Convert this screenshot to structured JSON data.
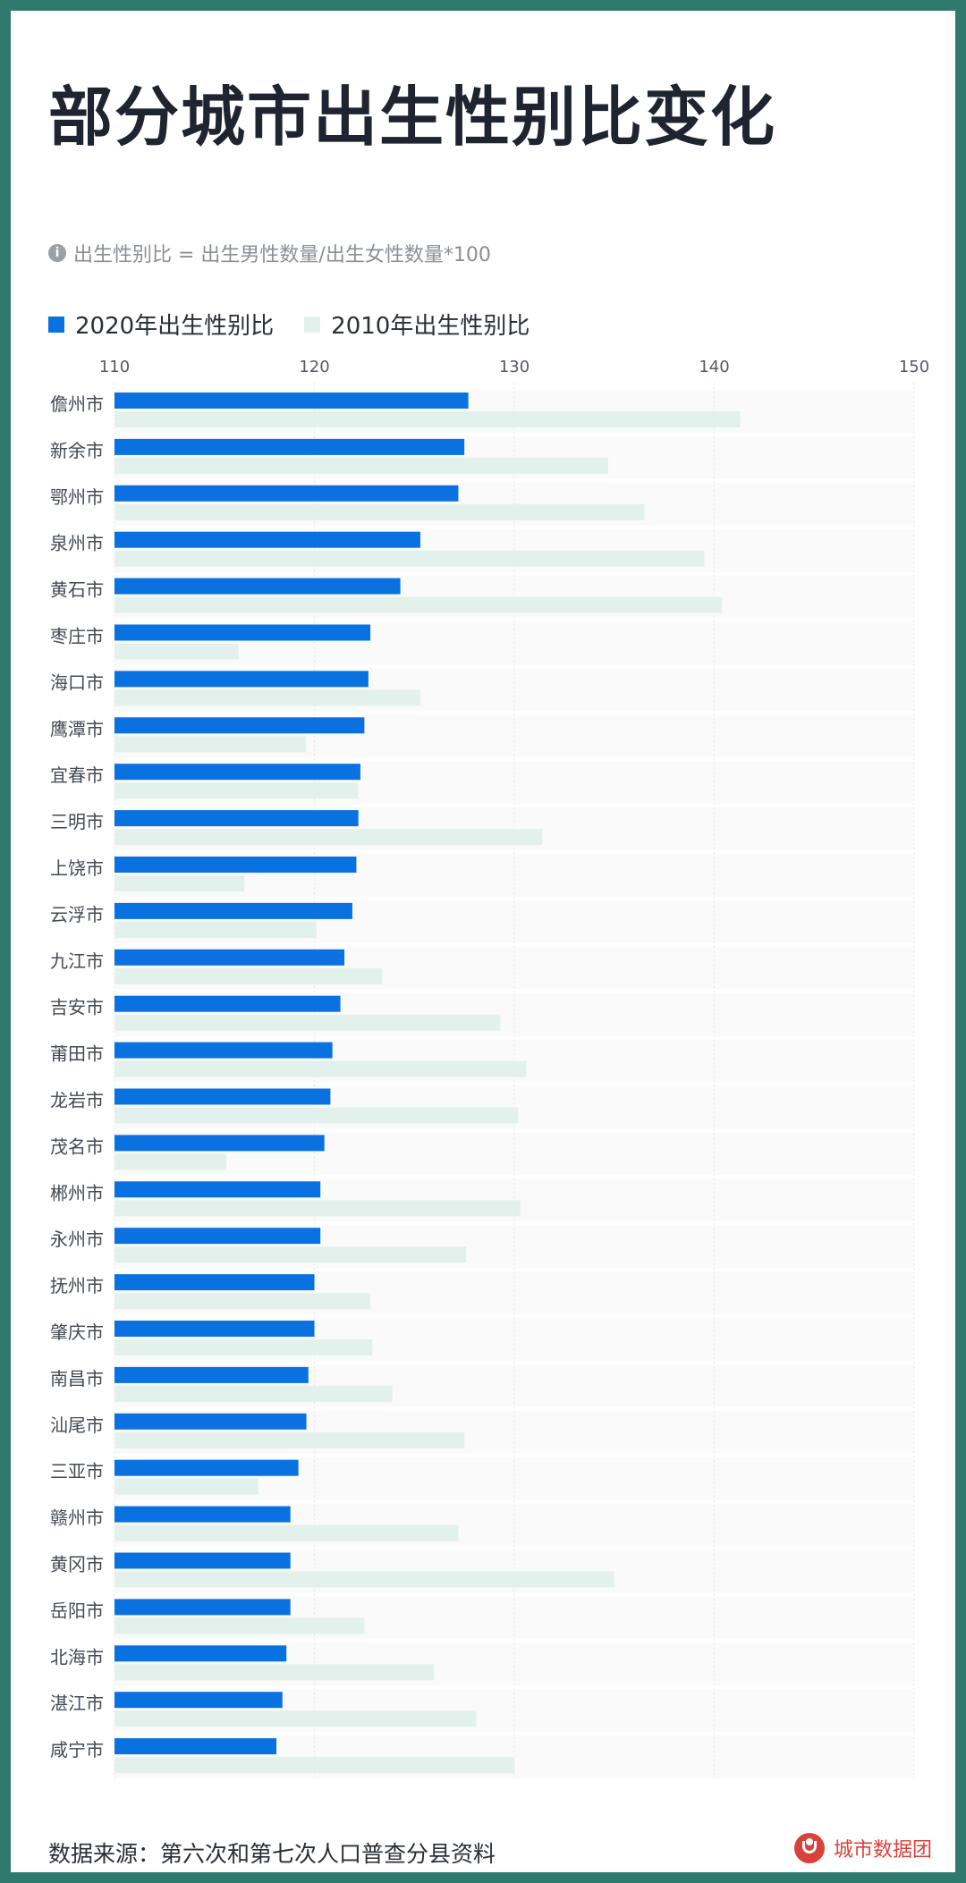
{
  "title": "部分城市出生性别比变化",
  "note": "出生性别比 = 出生男性数量/出生女性数量*100",
  "legend": {
    "series2020": "2020年出生性别比",
    "series2010": "2010年出生性别比"
  },
  "colors": {
    "series2020": "#0a72e0",
    "series2010": "#e3f1ec",
    "frame": "#2f7a6d",
    "brand": "#d9423a"
  },
  "footer": {
    "source": "数据来源：第六次和第七次人口普查分县资料",
    "brand": "城市数据团"
  },
  "chart_data": {
    "type": "bar",
    "orientation": "horizontal",
    "title": "部分城市出生性别比变化",
    "xlim": [
      110,
      150
    ],
    "xticks": [
      110,
      120,
      130,
      140,
      150
    ],
    "categories": [
      "儋州市",
      "新余市",
      "鄂州市",
      "泉州市",
      "黄石市",
      "枣庄市",
      "海口市",
      "鹰潭市",
      "宜春市",
      "三明市",
      "上饶市",
      "云浮市",
      "九江市",
      "吉安市",
      "莆田市",
      "龙岩市",
      "茂名市",
      "郴州市",
      "永州市",
      "抚州市",
      "肇庆市",
      "南昌市",
      "汕尾市",
      "三亚市",
      "赣州市",
      "黄冈市",
      "岳阳市",
      "北海市",
      "湛江市",
      "咸宁市"
    ],
    "series": [
      {
        "name": "2020年出生性别比",
        "values": [
          127.7,
          127.5,
          127.2,
          125.3,
          124.3,
          122.8,
          122.7,
          122.5,
          122.3,
          122.2,
          122.1,
          121.9,
          121.5,
          121.3,
          120.9,
          120.8,
          120.5,
          120.3,
          120.3,
          120.0,
          120.0,
          119.7,
          119.6,
          119.2,
          118.8,
          118.8,
          118.8,
          118.6,
          118.4,
          118.1
        ]
      },
      {
        "name": "2010年出生性别比",
        "values": [
          141.3,
          134.7,
          136.5,
          139.5,
          140.4,
          116.2,
          125.3,
          119.6,
          122.2,
          131.4,
          116.5,
          120.1,
          123.4,
          129.3,
          130.6,
          130.2,
          115.6,
          130.3,
          127.6,
          122.8,
          122.9,
          123.9,
          127.5,
          117.2,
          127.2,
          135.0,
          122.5,
          126.0,
          128.1,
          130.0
        ]
      }
    ]
  }
}
